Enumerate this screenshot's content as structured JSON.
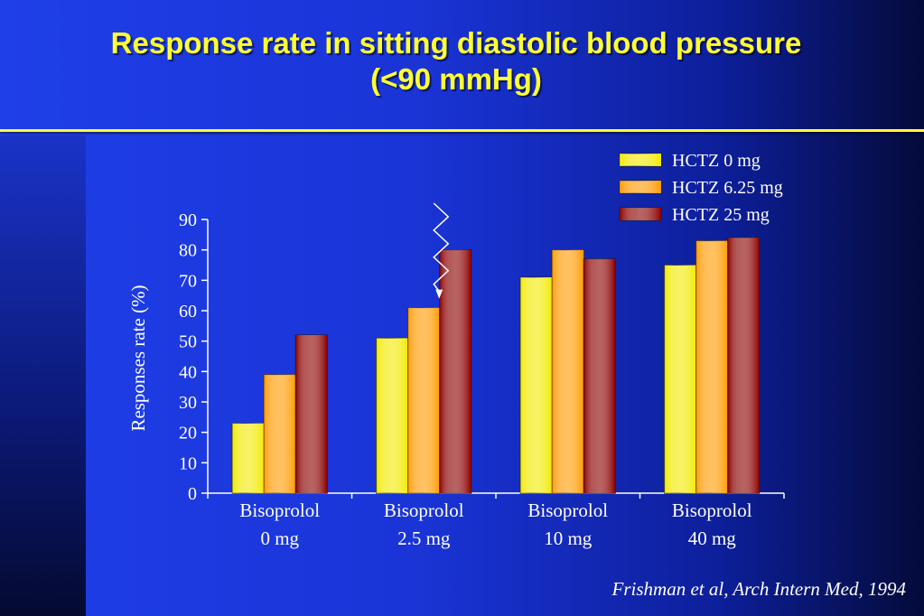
{
  "slide": {
    "title_line1": "Response rate in sitting diastolic blood pressure",
    "title_line2": "(<90 mmHg)",
    "citation": "Frishman et al, Arch Intern Med, 1994"
  },
  "colors": {
    "background": "#1a34d6",
    "title": "#ffff33",
    "text": "#ffffff"
  },
  "chart_data": {
    "type": "bar",
    "title": "",
    "xlabel": "",
    "ylabel": "Responses rate (%)",
    "ylim": [
      0,
      90
    ],
    "yticks": [
      0,
      10,
      20,
      30,
      40,
      50,
      60,
      70,
      80,
      90
    ],
    "categories": [
      [
        "Bisoprolol",
        "0 mg"
      ],
      [
        "Bisoprolol",
        "2.5 mg"
      ],
      [
        "Bisoprolol",
        "10 mg"
      ],
      [
        "Bisoprolol",
        "40 mg"
      ]
    ],
    "series": [
      {
        "name": "HCTZ 0 mg",
        "color": "#f2ea00",
        "values": [
          23,
          51,
          71,
          75
        ]
      },
      {
        "name": "HCTZ 6.25 mg",
        "color": "#ff9a00",
        "values": [
          39,
          61,
          80,
          83
        ]
      },
      {
        "name": "HCTZ 25 mg",
        "color": "#8b0000",
        "values": [
          52,
          80,
          77,
          84
        ]
      }
    ],
    "legend_position": "top-right",
    "grid": false,
    "annotations": [
      {
        "type": "zigzag-arrow",
        "category_index": 1,
        "series_index": 1
      }
    ]
  }
}
